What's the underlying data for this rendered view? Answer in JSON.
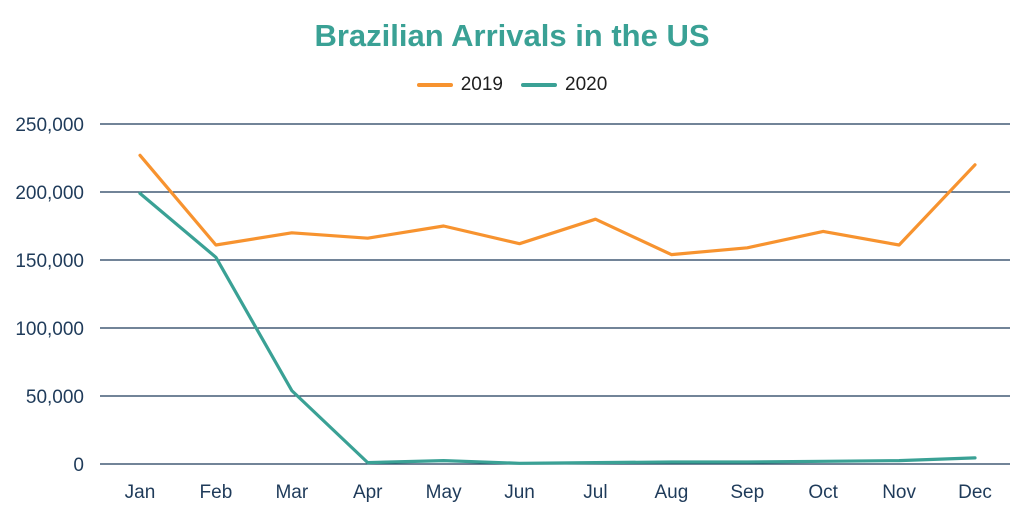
{
  "chart_data": {
    "type": "line",
    "title": "Brazilian Arrivals in the US",
    "xlabel": "",
    "ylabel": "",
    "categories": [
      "Jan",
      "Feb",
      "Mar",
      "Apr",
      "May",
      "Jun",
      "Jul",
      "Aug",
      "Sep",
      "Oct",
      "Nov",
      "Dec"
    ],
    "ylim": [
      0,
      250000
    ],
    "y_ticks": [
      "0",
      "50,000",
      "100,000",
      "150,000",
      "200,000",
      "250,000"
    ],
    "y_tick_values": [
      0,
      50000,
      100000,
      150000,
      200000,
      250000
    ],
    "grid": true,
    "legend_position": "top",
    "series": [
      {
        "name": "2019",
        "color": "#f7932f",
        "values": [
          227000,
          161000,
          170000,
          166000,
          175000,
          162000,
          180000,
          154000,
          159000,
          171000,
          161000,
          220000
        ]
      },
      {
        "name": "2020",
        "color": "#3aa195",
        "values": [
          199000,
          152000,
          54000,
          1000,
          2500,
          500,
          1000,
          1500,
          1500,
          2000,
          2500,
          4500
        ]
      }
    ]
  },
  "colors": {
    "title": "#3aa195",
    "grid": "#1f3b5a",
    "axis_text": "#1f3b5a"
  }
}
